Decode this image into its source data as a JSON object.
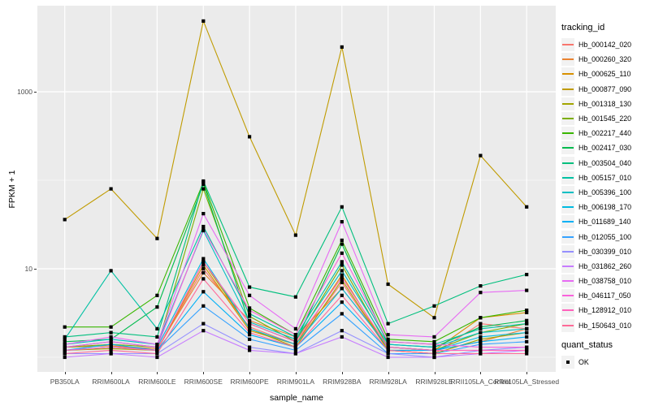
{
  "chart_data": {
    "type": "line",
    "title": "",
    "xlabel": "sample_name",
    "ylabel": "FPKM + 1",
    "y_scale": "log10",
    "grid": "on",
    "legend_position": "right",
    "y_major_ticks": [
      {
        "label": "1000",
        "value": 1000
      },
      {
        "label": "10",
        "value": 10
      }
    ],
    "y_minor_gridline_values": [
      100,
      1
    ],
    "ylim_log": [
      0.56,
      7800
    ],
    "categories": [
      "PB350LA",
      "RRIM600LA",
      "RRIM600LE",
      "RRIM600SE",
      "RRIM600PE",
      "RRIM901LA",
      "RRIM928BA",
      "RRIM928LA",
      "RRIM928LE",
      "RRII105LA_Control",
      "RRII105LA_Stressed"
    ],
    "series": [
      {
        "name": "Hb_000142_020",
        "color": "#F8766D",
        "values": [
          1.3,
          1.35,
          1.2,
          10,
          2.2,
          1.4,
          7,
          1.2,
          1.1,
          2.4,
          2.1
        ]
      },
      {
        "name": "Hb_000260_320",
        "color": "#EA8331",
        "values": [
          1.3,
          1.35,
          1.25,
          9,
          2.6,
          1.7,
          6,
          1.3,
          1.2,
          1.5,
          2.1
        ]
      },
      {
        "name": "Hb_000625_110",
        "color": "#D89000",
        "values": [
          1.2,
          1.3,
          1.2,
          11,
          2.0,
          1.4,
          8.5,
          1.2,
          1.2,
          2.8,
          3.2
        ]
      },
      {
        "name": "Hb_000877_090",
        "color": "#C09B00",
        "values": [
          36,
          80,
          22,
          6300,
          310,
          24,
          3200,
          6.7,
          2.8,
          190,
          50
        ]
      },
      {
        "name": "Hb_001318_130",
        "color": "#A3A500",
        "values": [
          1.2,
          1.25,
          1.2,
          12,
          2.1,
          1.3,
          7.5,
          1.2,
          1.1,
          1.6,
          1.9
        ]
      },
      {
        "name": "Hb_001545_220",
        "color": "#7CAE00",
        "values": [
          1.3,
          1.4,
          1.3,
          80,
          2.9,
          1.5,
          11,
          1.3,
          1.2,
          1.9,
          2.4
        ]
      },
      {
        "name": "Hb_002217_440",
        "color": "#39B600",
        "values": [
          2.2,
          2.2,
          5.0,
          95,
          3.6,
          1.8,
          21,
          1.6,
          1.5,
          2.8,
          3.4
        ]
      },
      {
        "name": "Hb_002417_030",
        "color": "#00BB4E",
        "values": [
          1.5,
          1.6,
          3.7,
          90,
          2.4,
          1.5,
          19,
          1.4,
          1.3,
          2.2,
          2.6
        ]
      },
      {
        "name": "Hb_003504_040",
        "color": "#00BF7D",
        "values": [
          1.7,
          1.9,
          1.7,
          98,
          6.2,
          4.8,
          50,
          2.4,
          3.8,
          6.4,
          8.6
        ]
      },
      {
        "name": "Hb_005157_010",
        "color": "#00C1A3",
        "values": [
          1.6,
          9.5,
          2.1,
          30,
          3.1,
          1.7,
          12,
          1.5,
          1.4,
          2.1,
          2.4
        ]
      },
      {
        "name": "Hb_005396_100",
        "color": "#00BFC4",
        "values": [
          1.4,
          1.6,
          1.4,
          27,
          2.5,
          1.6,
          9.5,
          1.4,
          1.3,
          1.9,
          2.1
        ]
      },
      {
        "name": "Hb_006198_170",
        "color": "#00BAE0",
        "values": [
          1.3,
          1.5,
          1.3,
          13,
          2.1,
          1.4,
          6,
          1.3,
          1.2,
          1.7,
          1.9
        ]
      },
      {
        "name": "Hb_011689_140",
        "color": "#00B0F6",
        "values": [
          1.2,
          1.4,
          1.2,
          5.5,
          1.8,
          1.3,
          4.2,
          1.2,
          1.2,
          1.5,
          1.7
        ]
      },
      {
        "name": "Hb_012055_100",
        "color": "#35A2FF",
        "values": [
          1.2,
          1.3,
          1.2,
          3.8,
          1.6,
          1.2,
          3.1,
          1.1,
          1.1,
          1.4,
          1.5
        ]
      },
      {
        "name": "Hb_030399_010",
        "color": "#9590FF",
        "values": [
          1.1,
          1.1,
          1.1,
          2.4,
          1.3,
          1.1,
          2.0,
          1.1,
          1.0,
          1.2,
          1.3
        ]
      },
      {
        "name": "Hb_031862_260",
        "color": "#C77CFF",
        "values": [
          1.0,
          1.1,
          1.0,
          2.0,
          1.2,
          1.1,
          1.7,
          1.0,
          1.0,
          1.1,
          1.2
        ]
      },
      {
        "name": "Hb_038758_010",
        "color": "#E76BF3",
        "values": [
          1.4,
          1.7,
          1.4,
          42,
          5.0,
          2.1,
          34,
          1.8,
          1.7,
          5.4,
          5.7
        ]
      },
      {
        "name": "Hb_046117_050",
        "color": "#FA62DB",
        "values": [
          1.3,
          1.5,
          1.3,
          28,
          3.4,
          1.8,
          15,
          1.5,
          1.4,
          1.3,
          1.3
        ]
      },
      {
        "name": "Hb_128912_010",
        "color": "#FF62BC",
        "values": [
          1.2,
          1.3,
          1.2,
          12,
          2.4,
          1.5,
          8,
          1.3,
          1.2,
          1.2,
          1.2
        ]
      },
      {
        "name": "Hb_150643_010",
        "color": "#FF6A98",
        "values": [
          1.1,
          1.2,
          1.1,
          7.7,
          1.9,
          1.3,
          5,
          1.2,
          1.1,
          1.1,
          1.1
        ]
      }
    ],
    "legend": {
      "tracking_title": "tracking_id",
      "quant_title": "quant_status",
      "quant_entries": [
        {
          "label": "OK",
          "marker": "black-square"
        }
      ]
    },
    "point_shape": "filled-square",
    "colors": {
      "panel_bg": "#EBEBEB",
      "gridline": "#FFFFFF",
      "point": "#000000",
      "tick_label": "#4D4D4D",
      "axis_title": "#000000",
      "legend_key_bg": "#F2F2F2"
    }
  }
}
